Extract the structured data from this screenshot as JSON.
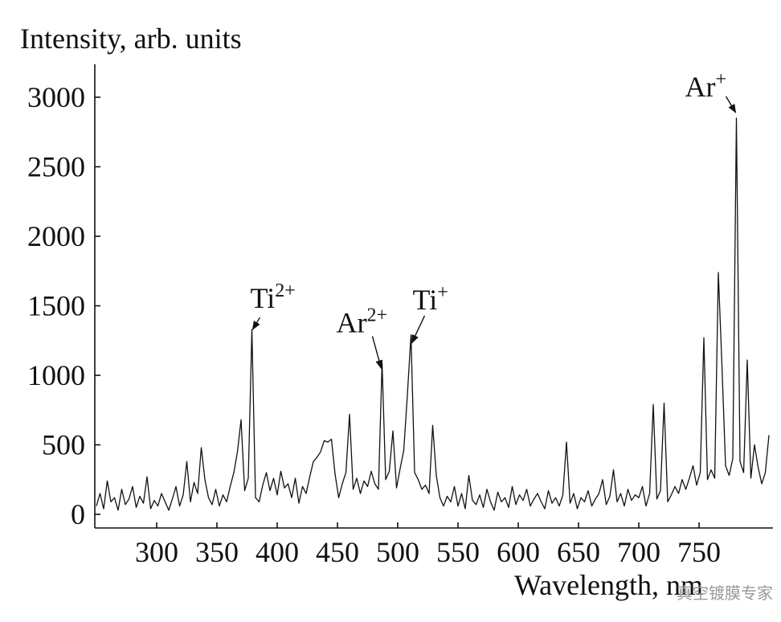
{
  "chart_data": {
    "type": "line",
    "title": "Intensity, arb. units",
    "x_label": "Wavelength, nm",
    "watermark": "真空镀膜专家",
    "color": "#111111",
    "x": [
      250,
      253,
      256,
      259,
      262,
      265,
      268,
      271,
      274,
      277,
      280,
      283,
      286,
      289,
      292,
      295,
      298,
      301,
      304,
      307,
      310,
      313,
      316,
      319,
      322,
      325,
      328,
      331,
      334,
      337,
      340,
      343,
      346,
      349,
      352,
      355,
      358,
      361,
      364,
      367,
      370,
      373,
      376,
      379,
      382,
      385,
      388,
      391,
      394,
      397,
      400,
      403,
      406,
      409,
      412,
      415,
      418,
      421,
      424,
      427,
      430,
      433,
      436,
      439,
      442,
      445,
      448,
      451,
      454,
      457,
      460,
      463,
      466,
      469,
      472,
      475,
      478,
      481,
      484,
      487,
      490,
      493,
      496,
      499,
      502,
      505,
      508,
      511,
      514,
      517,
      520,
      523,
      526,
      529,
      532,
      535,
      538,
      541,
      544,
      547,
      550,
      553,
      556,
      559,
      562,
      565,
      568,
      571,
      574,
      577,
      580,
      583,
      586,
      589,
      592,
      595,
      598,
      601,
      604,
      607,
      610,
      613,
      616,
      619,
      622,
      625,
      628,
      631,
      634,
      637,
      640,
      643,
      646,
      649,
      652,
      655,
      658,
      661,
      664,
      667,
      670,
      673,
      676,
      679,
      682,
      685,
      688,
      691,
      694,
      697,
      700,
      703,
      706,
      709,
      712,
      715,
      718,
      721,
      724,
      727,
      730,
      733,
      736,
      739,
      742,
      745,
      748,
      751,
      754,
      757,
      760,
      763,
      766,
      769,
      772,
      775,
      778,
      781,
      784,
      787,
      790,
      793,
      796,
      799,
      802,
      805,
      808
    ],
    "values": [
      60,
      150,
      40,
      240,
      90,
      120,
      30,
      180,
      70,
      110,
      200,
      50,
      130,
      80,
      270,
      40,
      100,
      60,
      150,
      90,
      30,
      110,
      200,
      60,
      140,
      380,
      90,
      230,
      150,
      480,
      250,
      120,
      70,
      180,
      60,
      140,
      90,
      200,
      300,
      450,
      680,
      170,
      260,
      1330,
      120,
      90,
      210,
      300,
      170,
      260,
      140,
      310,
      190,
      220,
      120,
      260,
      80,
      200,
      150,
      270,
      380,
      410,
      450,
      530,
      520,
      540,
      290,
      120,
      220,
      300,
      720,
      180,
      260,
      150,
      240,
      200,
      310,
      220,
      180,
      1090,
      250,
      310,
      600,
      190,
      330,
      460,
      860,
      1290,
      300,
      250,
      180,
      210,
      150,
      640,
      280,
      120,
      60,
      130,
      90,
      200,
      60,
      150,
      40,
      280,
      100,
      70,
      140,
      50,
      180,
      90,
      30,
      160,
      90,
      120,
      50,
      200,
      70,
      140,
      100,
      180,
      60,
      110,
      150,
      90,
      40,
      170,
      80,
      120,
      60,
      140,
      520,
      80,
      150,
      40,
      120,
      90,
      170,
      60,
      110,
      150,
      250,
      70,
      130,
      320,
      90,
      150,
      60,
      180,
      100,
      140,
      120,
      200,
      60,
      150,
      790,
      110,
      170,
      800,
      90,
      140,
      200,
      150,
      250,
      180,
      260,
      350,
      210,
      300,
      1270,
      250,
      320,
      260,
      1740,
      1070,
      350,
      280,
      400,
      2850,
      380,
      300,
      1110,
      260,
      500,
      340,
      220,
      300,
      570
    ],
    "xlim": [
      248.7,
      811.3
    ],
    "ylim": [
      -98,
      3237
    ],
    "xticks": [
      300,
      350,
      400,
      450,
      500,
      550,
      600,
      650,
      700,
      750
    ],
    "yticks": [
      0,
      500,
      1000,
      1500,
      2000,
      2500,
      3000
    ],
    "annotations": [
      {
        "text": "Ti",
        "sup": "2+",
        "x": 379,
        "y": 1330
      },
      {
        "text": "Ar",
        "sup": "2+",
        "x": 487,
        "y": 1090
      },
      {
        "text": "Ti",
        "sup": "+",
        "x": 511,
        "y": 1290
      },
      {
        "text": "Ar",
        "sup": "+",
        "x": 781,
        "y": 2850
      }
    ]
  }
}
